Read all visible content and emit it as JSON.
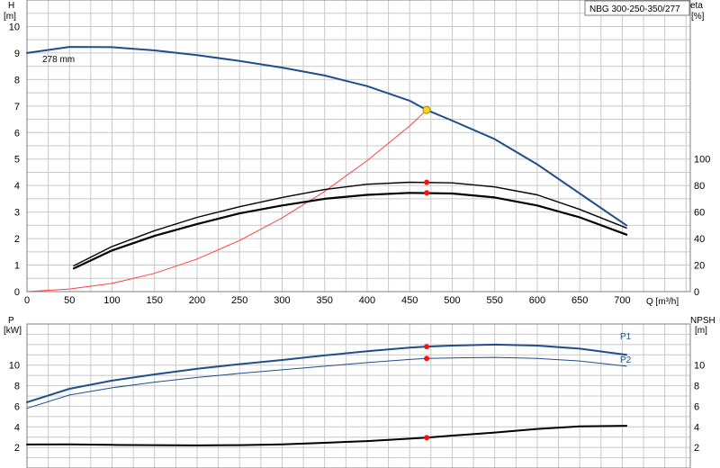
{
  "model_label": "NBG 300-250-350/277",
  "colors": {
    "head": "#1f4e8c",
    "p1": "#1f4e8c",
    "p2": "#1f4e8c",
    "system": "#ff4040",
    "efficiency": "#000000",
    "npsh": "#000000",
    "duty_marker": "#ff1010",
    "duty_point": "#ffd21f",
    "grid": "#c8c8c8"
  },
  "chart_data": [
    {
      "type": "line",
      "id": "qh-eta",
      "grid": true,
      "xlabel": "Q [m³/h]",
      "x_ticks": [
        "0",
        "50",
        "100",
        "150",
        "200",
        "250",
        "300",
        "350",
        "400",
        "450",
        "500",
        "550",
        "600",
        "650",
        "700"
      ],
      "xlim": [
        0,
        780
      ],
      "y_left": {
        "label_top": "H",
        "label_unit": "[m]",
        "ticks": [
          "0",
          "1",
          "2",
          "3",
          "4",
          "5",
          "6",
          "7",
          "8",
          "9",
          "10"
        ],
        "lim": [
          0,
          11
        ]
      },
      "y_right": {
        "label_top": "eta",
        "label_unit": "[%]",
        "ticks": [
          "0",
          "20",
          "40",
          "60",
          "80",
          "100"
        ],
        "lim": [
          0,
          220
        ]
      },
      "annotation": "278 mm",
      "series": [
        {
          "id": "head",
          "axis": "left",
          "stroke_width": 2,
          "x": [
            0,
            50,
            100,
            150,
            200,
            250,
            300,
            350,
            400,
            450,
            470,
            500,
            550,
            600,
            650,
            705
          ],
          "y": [
            9.0,
            9.23,
            9.22,
            9.1,
            8.92,
            8.7,
            8.45,
            8.15,
            7.75,
            7.2,
            6.85,
            6.45,
            5.75,
            4.8,
            3.7,
            2.5
          ]
        },
        {
          "id": "system",
          "axis": "left",
          "stroke_width": 1,
          "x": [
            0,
            50,
            100,
            150,
            200,
            250,
            300,
            350,
            400,
            450,
            470
          ],
          "y": [
            0.0,
            0.1,
            0.31,
            0.69,
            1.23,
            1.93,
            2.78,
            3.78,
            4.94,
            6.25,
            6.85
          ]
        },
        {
          "id": "eta-upper",
          "axis": "right",
          "stroke_width": 1.4,
          "x": [
            55,
            100,
            150,
            200,
            250,
            300,
            350,
            400,
            450,
            500,
            550,
            600,
            650,
            705
          ],
          "y": [
            19.5,
            34,
            46,
            56,
            64,
            71,
            77,
            81,
            82.5,
            82,
            79,
            73,
            62,
            48
          ]
        },
        {
          "id": "eta-lower",
          "axis": "right",
          "stroke_width": 2.2,
          "x": [
            55,
            100,
            150,
            200,
            250,
            300,
            350,
            400,
            450,
            500,
            550,
            600,
            650,
            705
          ],
          "y": [
            17.5,
            31,
            42,
            51,
            59,
            65,
            70,
            73,
            74.5,
            74,
            71,
            65,
            56,
            43
          ]
        }
      ],
      "duty_points": [
        {
          "x": 470,
          "y": 6.85,
          "axis": "left",
          "kind": "duty"
        },
        {
          "x": 470,
          "y": 82.5,
          "axis": "right",
          "kind": "marker"
        },
        {
          "x": 470,
          "y": 74.5,
          "axis": "right",
          "kind": "marker"
        }
      ]
    },
    {
      "type": "line",
      "id": "power-npsh",
      "grid": true,
      "xlim": [
        0,
        780
      ],
      "y_left": {
        "label_top": "P",
        "label_unit": "[kW]",
        "ticks": [
          "2",
          "4",
          "6",
          "8",
          "10"
        ],
        "lim": [
          0,
          14
        ]
      },
      "y_right": {
        "label_top": "NPSH",
        "label_unit": "[m]",
        "ticks": [
          "2",
          "4",
          "6",
          "8",
          "10"
        ],
        "lim": [
          0,
          14
        ]
      },
      "series": [
        {
          "id": "p1",
          "name": "P1",
          "axis": "left",
          "stroke_width": 2,
          "x": [
            0,
            50,
            100,
            150,
            200,
            250,
            300,
            350,
            400,
            450,
            470,
            500,
            550,
            600,
            650,
            705
          ],
          "y": [
            6.4,
            7.7,
            8.5,
            9.1,
            9.65,
            10.1,
            10.5,
            10.95,
            11.35,
            11.7,
            11.8,
            11.9,
            12.0,
            11.9,
            11.6,
            11.0
          ]
        },
        {
          "id": "p2",
          "name": "P2",
          "axis": "left",
          "stroke_width": 1,
          "x": [
            0,
            50,
            100,
            150,
            200,
            250,
            300,
            350,
            400,
            450,
            470,
            500,
            550,
            600,
            650,
            705
          ],
          "y": [
            5.8,
            7.1,
            7.8,
            8.35,
            8.8,
            9.2,
            9.55,
            9.9,
            10.25,
            10.55,
            10.65,
            10.7,
            10.75,
            10.65,
            10.4,
            9.9
          ]
        },
        {
          "id": "npsh",
          "axis": "right",
          "stroke_width": 2,
          "x": [
            0,
            50,
            100,
            150,
            200,
            250,
            300,
            350,
            400,
            450,
            470,
            500,
            550,
            600,
            650,
            705
          ],
          "y": [
            2.28,
            2.3,
            2.25,
            2.22,
            2.2,
            2.22,
            2.3,
            2.45,
            2.62,
            2.85,
            2.95,
            3.15,
            3.45,
            3.8,
            4.05,
            4.1
          ]
        }
      ],
      "duty_points": [
        {
          "x": 470,
          "y": 11.8,
          "axis": "left",
          "kind": "marker"
        },
        {
          "x": 470,
          "y": 10.65,
          "axis": "left",
          "kind": "marker"
        },
        {
          "x": 470,
          "y": 2.95,
          "axis": "right",
          "kind": "marker"
        }
      ]
    }
  ]
}
